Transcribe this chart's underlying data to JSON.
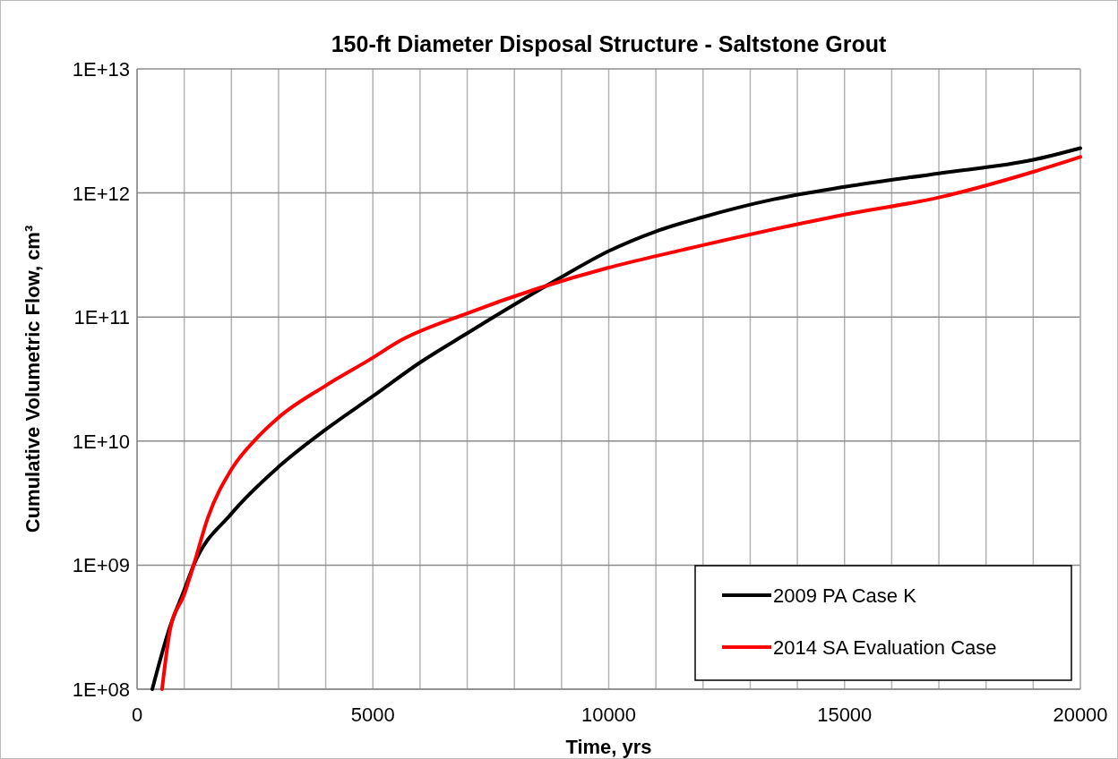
{
  "chart_data": {
    "type": "line",
    "title": "150-ft Diameter Disposal Structure - Saltstone Grout",
    "xlabel": "Time, yrs",
    "ylabel": "Cumulative Volumetric Flow, cm³",
    "log": "y",
    "grid": true,
    "legend": "bottom right",
    "line_style": "solid",
    "marker": "none",
    "xlim": [
      0,
      20000
    ],
    "xticks": [
      0,
      {
        "value": 1000,
        "label": null
      },
      {
        "value": 2000,
        "label": null
      },
      {
        "value": 3000,
        "label": null
      },
      {
        "value": 4000,
        "label": null
      },
      5000,
      {
        "value": 6000,
        "label": null
      },
      {
        "value": 7000,
        "label": null
      },
      {
        "value": 8000,
        "label": null
      },
      {
        "value": 9000,
        "label": null
      },
      10000,
      {
        "value": 11000,
        "label": null
      },
      {
        "value": 12000,
        "label": null
      },
      {
        "value": 13000,
        "label": null
      },
      {
        "value": 14000,
        "label": null
      },
      15000,
      {
        "value": 16000,
        "label": null
      },
      {
        "value": 17000,
        "label": null
      },
      {
        "value": 18000,
        "label": null
      },
      {
        "value": 19000,
        "label": null
      },
      20000
    ],
    "ylim": [
      100000000,
      10000000000000
    ],
    "yticks": [
      {
        "value": 100000000,
        "label": "1E+08"
      },
      {
        "value": 1000000000,
        "label": "1E+09"
      },
      {
        "value": 10000000000,
        "label": "1E+10"
      },
      {
        "value": 100000000000,
        "label": "1E+11"
      },
      {
        "value": 1000000000000,
        "label": "1E+12"
      },
      {
        "value": 10000000000000,
        "label": "1E+13"
      }
    ],
    "series": [
      {
        "name": "2009 PA Case K",
        "color": "#000000",
        "x": [
          323,
          700,
          1000,
          1200,
          2000,
          3000,
          4000,
          5000,
          6000,
          7000,
          8000,
          9000,
          10000,
          11000,
          12000,
          13500,
          15000,
          17000,
          19000,
          20000
        ],
        "values": [
          100000000.0,
          320000000.0,
          630000000.0,
          1000000000.0,
          2600000000.0,
          6200000000.0,
          12400000000.0,
          23000000000.0,
          43000000000.0,
          74000000000.0,
          126000000000.0,
          210000000000.0,
          340000000000.0,
          490000000000.0,
          640000000000.0,
          890000000000.0,
          1120000000000.0,
          1440000000000.0,
          1850000000000.0,
          2300000000000.0
        ]
      },
      {
        "name": "2014 SA Evaluation Case",
        "color": "#ff0000",
        "x": [
          530,
          700,
          1000,
          1200,
          1500,
          2000,
          2500,
          3000,
          4000,
          5000,
          5500,
          7000,
          8500,
          10000,
          11000,
          12000,
          14000,
          15000,
          17000,
          19000,
          20000
        ],
        "values": [
          100000000.0,
          300000000.0,
          580000000.0,
          1000000000.0,
          2400000000.0,
          5900000000.0,
          10200000000.0,
          15500000000.0,
          28000000000.0,
          47000000000.0,
          62000000000.0,
          107000000000.0,
          170000000000.0,
          250000000000.0,
          310000000000.0,
          380000000000.0,
          560000000000.0,
          670000000000.0,
          920000000000.0,
          1480000000000.0,
          1950000000000.0
        ]
      }
    ]
  }
}
